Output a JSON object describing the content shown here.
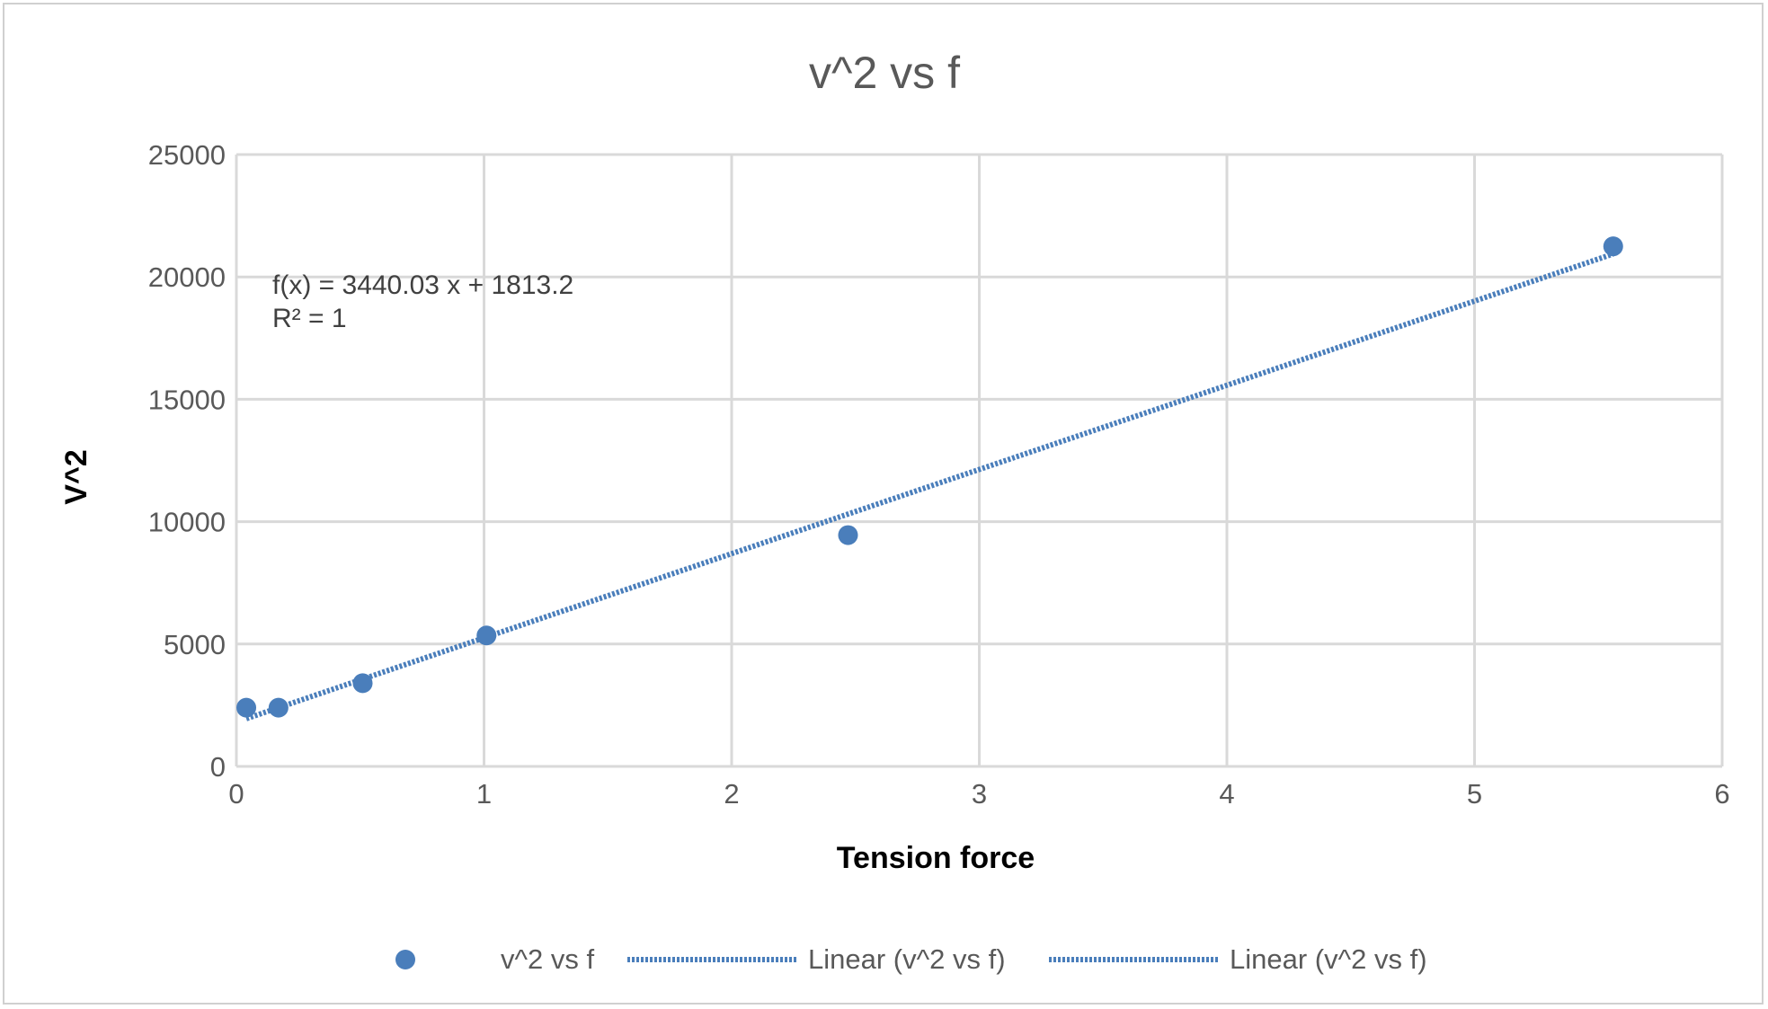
{
  "chart_data": {
    "type": "scatter",
    "title": "v^2 vs f",
    "xlabel": "Tension force",
    "ylabel": "V^2",
    "xlim": [
      0,
      6
    ],
    "ylim": [
      0,
      25000
    ],
    "x_ticks": [
      "0",
      "1",
      "2",
      "3",
      "4",
      "5",
      "6"
    ],
    "y_ticks": [
      "0",
      "5000",
      "10000",
      "15000",
      "20000",
      "25000"
    ],
    "grid": true,
    "legend_position": "bottom",
    "series": [
      {
        "name": "v^2 vs f",
        "color": "#4a7ebb",
        "x": [
          0.04,
          0.17,
          0.51,
          1.01,
          2.47,
          5.56
        ],
        "y": [
          2400,
          2400,
          3400,
          5350,
          9450,
          21250
        ]
      }
    ],
    "trendline": {
      "type": "linear",
      "slope": 3440.03,
      "intercept": 1813.2,
      "x_range": [
        0.04,
        5.56
      ],
      "color": "#4a7ebb",
      "equation_label": "f(x) = 3440.03 x + 1813.2",
      "r2_label": "R² = 1"
    },
    "legend": [
      {
        "label": "v^2 vs f",
        "marker": "dot"
      },
      {
        "label": "Linear (v^2 vs f)",
        "marker": "dotted-line"
      },
      {
        "label": "Linear (v^2 vs f)",
        "marker": "dotted-line"
      }
    ]
  }
}
